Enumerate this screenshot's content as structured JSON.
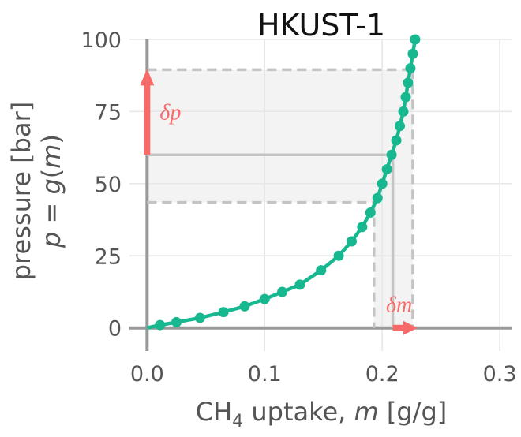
{
  "chart_data": {
    "type": "scatter",
    "title": "HKUST-1",
    "xlabel": {
      "prefix": "CH",
      "subscript": "4",
      "middle": " uptake, ",
      "var": "m",
      "unit": " [g/g]"
    },
    "ylabel": {
      "line1": "pressure [bar]",
      "line2_var": "p",
      "line2_eq": " = ",
      "line2_func": "g",
      "line2_open": "(",
      "line2_arg": "m",
      "line2_close": ")"
    },
    "xlim": [
      -0.015,
      0.31
    ],
    "ylim": [
      -8,
      100
    ],
    "xticks": [
      0.0,
      0.1,
      0.2,
      0.3
    ],
    "xtick_labels": [
      "0.0",
      "0.1",
      "0.2",
      "0.3"
    ],
    "yticks": [
      0,
      25,
      50,
      75,
      100
    ],
    "ytick_labels": [
      "0",
      "25",
      "50",
      "75",
      "100"
    ],
    "grid": true,
    "series": [
      {
        "color": "#17b890",
        "x": [
          0.0,
          0.011,
          0.025,
          0.045,
          0.065,
          0.083,
          0.1,
          0.115,
          0.13,
          0.148,
          0.163,
          0.174,
          0.183,
          0.19,
          0.196,
          0.2,
          0.204,
          0.208,
          0.212,
          0.215,
          0.218,
          0.22,
          0.222,
          0.224,
          0.226,
          0.228
        ],
        "y": [
          0,
          1,
          2,
          3.5,
          5.5,
          7.5,
          10,
          12.5,
          15,
          20,
          25,
          30,
          35,
          40,
          45,
          50,
          55,
          60,
          65,
          70,
          75,
          80,
          85,
          90,
          95,
          100
        ]
      }
    ],
    "annotations": {
      "operating_point": {
        "m": 0.209,
        "p": 60
      },
      "p_range": [
        43.5,
        89.5
      ],
      "m_range": [
        0.193,
        0.226
      ],
      "delta_p_label": "δp",
      "delta_m_label": "δm",
      "arrow_color": "#f76a6a",
      "guide_color": "#c4c4c4",
      "band_color": "#f3f3f3"
    }
  }
}
